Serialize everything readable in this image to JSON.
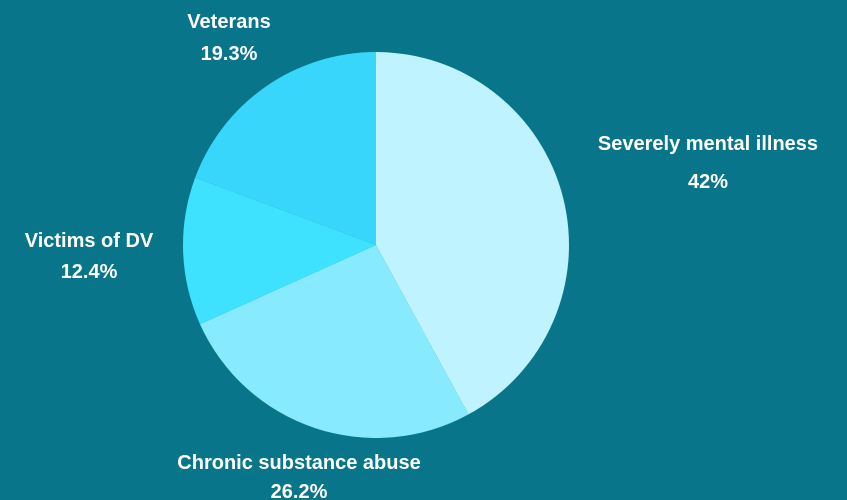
{
  "colors": {
    "background": "#08758a",
    "label": "#ffffff"
  },
  "chart_data": {
    "type": "pie",
    "title": "",
    "legend": "none",
    "start_angle_deg": 0,
    "direction": "clockwise",
    "slices": [
      {
        "name": "Severely mental illness",
        "label": "42%",
        "value": 42,
        "color": "#bff3ff"
      },
      {
        "name": "Chronic substance abuse",
        "label": "26.2%",
        "value": 26.2,
        "color": "#88eaff"
      },
      {
        "name": "Victims of DV",
        "label": "12.4%",
        "value": 12.4,
        "color": "#3ee2ff"
      },
      {
        "name": "Veterans",
        "label": "19.3%",
        "value": 19.3,
        "color": "#38d6fb"
      }
    ]
  }
}
